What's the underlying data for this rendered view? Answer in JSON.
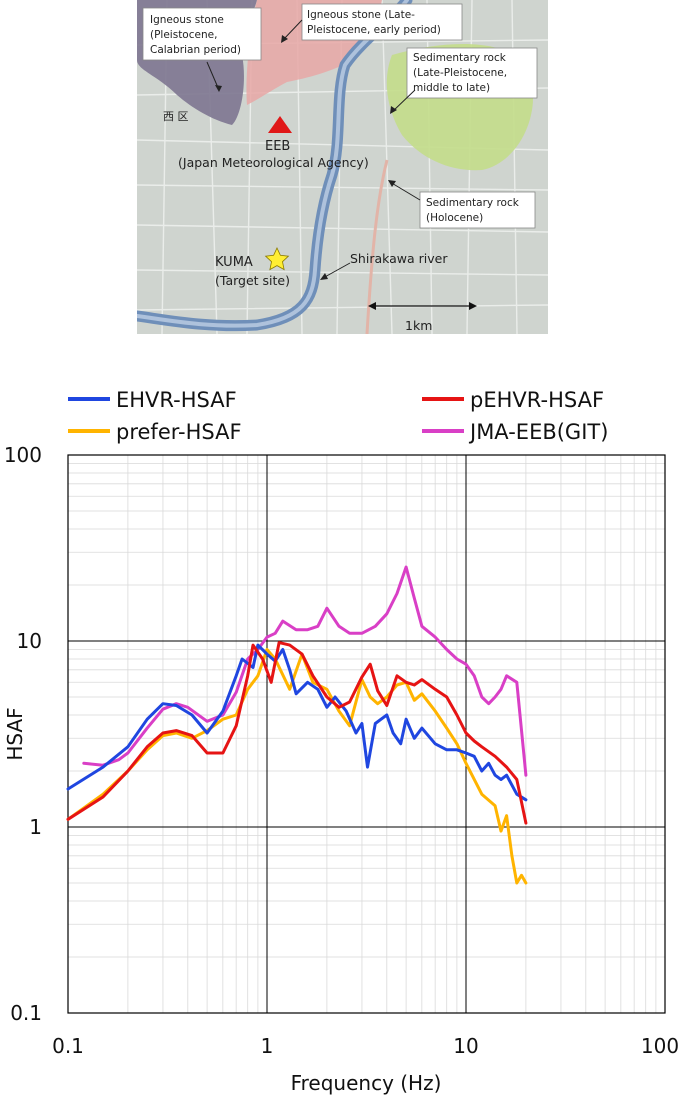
{
  "map": {
    "labels": {
      "igneous_calabrian": [
        "Igneous stone",
        "(Pleistocene,",
        "Calabrian period)"
      ],
      "igneous_late": [
        "Igneous stone (Late-",
        "Pleistocene, early period)"
      ],
      "sed_late": [
        "Sedimentary rock",
        "(Late-Pleistocene,",
        "middle to late)"
      ],
      "sed_holocene": [
        "Sedimentary rock",
        "(Holocene)"
      ],
      "ward": "西 区",
      "eeb": "EEB",
      "eeb_agency": "(Japan Meteorological Agency)",
      "kuma": "KUMA",
      "kuma_target": "(Target site)",
      "river": "Shirakawa river",
      "scale": "1km"
    },
    "colors": {
      "background": "#cfd4cf",
      "igneous_calabrian": "#7d7690",
      "igneous_late": "#e7a7a6",
      "sed_late": "#c3dd8a",
      "river": "#6f8fb9",
      "eeb_marker": "#e01818",
      "kuma_marker": "#ffee33"
    }
  },
  "chart_data": {
    "type": "line",
    "xlabel": "Frequency (Hz)",
    "ylabel": "HSAF",
    "x_scale": "log",
    "y_scale": "log",
    "xlim": [
      0.1,
      100
    ],
    "ylim": [
      0.1,
      100
    ],
    "x_ticks": [
      "0.1",
      "1",
      "10",
      "100"
    ],
    "y_ticks": [
      "0.1",
      "1",
      "10",
      "100"
    ],
    "grid": true,
    "legend": "top",
    "series": [
      {
        "name": "EHVR-HSAF",
        "color": "#1f46e0",
        "points": [
          [
            0.1,
            1.6
          ],
          [
            0.15,
            2.1
          ],
          [
            0.2,
            2.7
          ],
          [
            0.25,
            3.8
          ],
          [
            0.3,
            4.6
          ],
          [
            0.35,
            4.5
          ],
          [
            0.42,
            4.0
          ],
          [
            0.5,
            3.2
          ],
          [
            0.6,
            4.2
          ],
          [
            0.7,
            6.5
          ],
          [
            0.75,
            8.0
          ],
          [
            0.85,
            7.2
          ],
          [
            0.9,
            9.5
          ],
          [
            1.0,
            8.5
          ],
          [
            1.1,
            7.8
          ],
          [
            1.2,
            9.0
          ],
          [
            1.3,
            7.0
          ],
          [
            1.4,
            5.2
          ],
          [
            1.6,
            6.0
          ],
          [
            1.8,
            5.5
          ],
          [
            2.0,
            4.4
          ],
          [
            2.2,
            5.0
          ],
          [
            2.5,
            4.2
          ],
          [
            2.8,
            3.2
          ],
          [
            3.0,
            3.6
          ],
          [
            3.2,
            2.1
          ],
          [
            3.5,
            3.6
          ],
          [
            4.0,
            4.0
          ],
          [
            4.3,
            3.2
          ],
          [
            4.7,
            2.8
          ],
          [
            5.0,
            3.8
          ],
          [
            5.5,
            3.0
          ],
          [
            6.0,
            3.4
          ],
          [
            7.0,
            2.8
          ],
          [
            8.0,
            2.6
          ],
          [
            9.0,
            2.6
          ],
          [
            10,
            2.5
          ],
          [
            11,
            2.4
          ],
          [
            12,
            2.0
          ],
          [
            13,
            2.2
          ],
          [
            14,
            1.9
          ],
          [
            15,
            1.8
          ],
          [
            16,
            1.9
          ],
          [
            18,
            1.5
          ],
          [
            20,
            1.4
          ]
        ]
      },
      {
        "name": "pEHVR-HSAF",
        "color": "#e61414",
        "points": [
          [
            0.1,
            1.1
          ],
          [
            0.15,
            1.45
          ],
          [
            0.2,
            2.0
          ],
          [
            0.25,
            2.7
          ],
          [
            0.3,
            3.2
          ],
          [
            0.35,
            3.3
          ],
          [
            0.42,
            3.1
          ],
          [
            0.5,
            2.5
          ],
          [
            0.6,
            2.5
          ],
          [
            0.7,
            3.5
          ],
          [
            0.8,
            6.5
          ],
          [
            0.85,
            9.5
          ],
          [
            0.95,
            8.0
          ],
          [
            1.05,
            6.0
          ],
          [
            1.15,
            9.8
          ],
          [
            1.3,
            9.5
          ],
          [
            1.5,
            8.5
          ],
          [
            1.7,
            6.5
          ],
          [
            2.0,
            5.0
          ],
          [
            2.3,
            4.4
          ],
          [
            2.6,
            4.7
          ],
          [
            3.0,
            6.4
          ],
          [
            3.3,
            7.5
          ],
          [
            3.6,
            5.4
          ],
          [
            4.0,
            4.5
          ],
          [
            4.5,
            6.5
          ],
          [
            5.0,
            6.0
          ],
          [
            5.5,
            5.8
          ],
          [
            6.0,
            6.2
          ],
          [
            7.0,
            5.5
          ],
          [
            8.0,
            5.0
          ],
          [
            9.0,
            4.0
          ],
          [
            10,
            3.2
          ],
          [
            11,
            2.9
          ],
          [
            12,
            2.7
          ],
          [
            14,
            2.4
          ],
          [
            16,
            2.1
          ],
          [
            18,
            1.8
          ],
          [
            20,
            1.05
          ]
        ]
      },
      {
        "name": "prefer-HSAF",
        "color": "#ffb400",
        "points": [
          [
            0.1,
            1.1
          ],
          [
            0.15,
            1.5
          ],
          [
            0.2,
            2.0
          ],
          [
            0.25,
            2.6
          ],
          [
            0.3,
            3.1
          ],
          [
            0.35,
            3.2
          ],
          [
            0.42,
            3.0
          ],
          [
            0.5,
            3.3
          ],
          [
            0.6,
            3.8
          ],
          [
            0.7,
            4.0
          ],
          [
            0.8,
            5.5
          ],
          [
            0.9,
            6.5
          ],
          [
            1.0,
            9.0
          ],
          [
            1.1,
            8.0
          ],
          [
            1.3,
            5.5
          ],
          [
            1.5,
            8.5
          ],
          [
            1.7,
            6.0
          ],
          [
            2.0,
            5.5
          ],
          [
            2.3,
            4.2
          ],
          [
            2.6,
            3.5
          ],
          [
            3.0,
            6.2
          ],
          [
            3.3,
            5.0
          ],
          [
            3.6,
            4.6
          ],
          [
            4.0,
            5.0
          ],
          [
            4.5,
            5.8
          ],
          [
            5.0,
            6.0
          ],
          [
            5.5,
            4.8
          ],
          [
            6.0,
            5.2
          ],
          [
            7.0,
            4.2
          ],
          [
            8.0,
            3.4
          ],
          [
            9.0,
            2.8
          ],
          [
            10,
            2.2
          ],
          [
            12,
            1.5
          ],
          [
            14,
            1.3
          ],
          [
            15,
            0.95
          ],
          [
            16,
            1.15
          ],
          [
            17,
            0.7
          ],
          [
            18,
            0.5
          ],
          [
            19,
            0.55
          ],
          [
            20,
            0.5
          ]
        ]
      },
      {
        "name": "JMA-EEB(GIT)",
        "color": "#d93fc6",
        "points": [
          [
            0.12,
            2.2
          ],
          [
            0.15,
            2.15
          ],
          [
            0.18,
            2.3
          ],
          [
            0.2,
            2.5
          ],
          [
            0.25,
            3.4
          ],
          [
            0.3,
            4.3
          ],
          [
            0.35,
            4.6
          ],
          [
            0.4,
            4.4
          ],
          [
            0.5,
            3.7
          ],
          [
            0.6,
            4.0
          ],
          [
            0.7,
            5.3
          ],
          [
            0.8,
            8.0
          ],
          [
            0.9,
            9.0
          ],
          [
            1.0,
            10.5
          ],
          [
            1.1,
            11.0
          ],
          [
            1.2,
            12.8
          ],
          [
            1.4,
            11.5
          ],
          [
            1.6,
            11.5
          ],
          [
            1.8,
            12.0
          ],
          [
            2.0,
            15.0
          ],
          [
            2.3,
            12.0
          ],
          [
            2.6,
            11.0
          ],
          [
            3.0,
            11.0
          ],
          [
            3.5,
            12.0
          ],
          [
            4.0,
            14.0
          ],
          [
            4.5,
            18.0
          ],
          [
            5.0,
            25.0
          ],
          [
            5.5,
            17.0
          ],
          [
            6.0,
            12.0
          ],
          [
            7.0,
            10.5
          ],
          [
            8.0,
            9.0
          ],
          [
            9.0,
            8.0
          ],
          [
            10,
            7.5
          ],
          [
            11,
            6.5
          ],
          [
            12,
            5.0
          ],
          [
            13,
            4.6
          ],
          [
            14,
            5.0
          ],
          [
            15,
            5.5
          ],
          [
            16,
            6.5
          ],
          [
            18,
            6.0
          ],
          [
            20,
            1.9
          ]
        ]
      }
    ]
  }
}
